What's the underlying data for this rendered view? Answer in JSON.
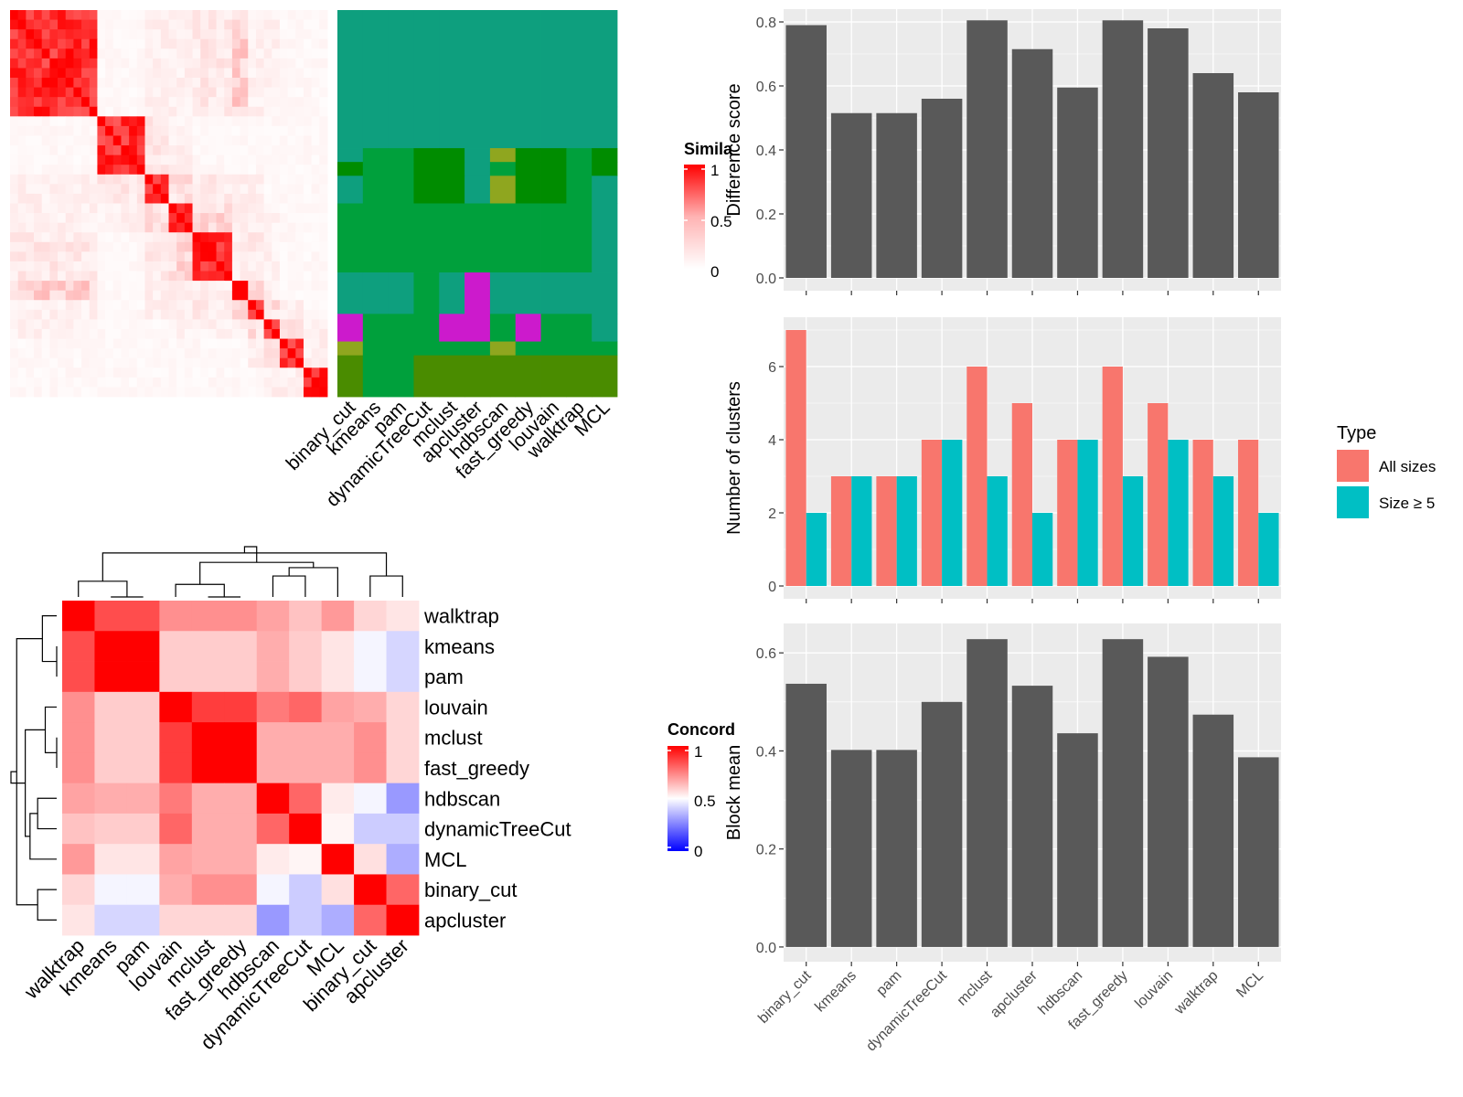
{
  "colors": {
    "heat_high": "#FF0000",
    "heat_mid": "#FFB3B3",
    "heat_low": "#FFFFFF",
    "conc_low": "#0000FF",
    "conc_mid": "#FFFFFF",
    "conc_high": "#FF0000",
    "panel_bg": "#EBEBEB",
    "gridline": "#FFFFFF",
    "bar_gray": "#595959",
    "all_sizes": "#F8766D",
    "size_ge5": "#00BFC4",
    "grey_text": "#4D4D4D"
  },
  "chart_data": [
    {
      "id": "cell-similarity-heatmap",
      "type": "heatmap",
      "legend_title": "Simila",
      "legend_ticks": [
        "1",
        "0.5",
        "0"
      ],
      "n_cells": 40,
      "groups": [
        {
          "size": 11,
          "label": 0
        },
        {
          "size": 6,
          "label": 0
        },
        {
          "size": 3,
          "label": 1
        },
        {
          "size": 3,
          "label": 2
        },
        {
          "size": 5,
          "label": 3
        },
        {
          "size": 2,
          "label": 4
        },
        {
          "size": 2,
          "label": 5
        },
        {
          "size": 2,
          "label": 6
        },
        {
          "size": 3,
          "label": 7
        },
        {
          "size": 3,
          "label": 8
        }
      ],
      "block_similarity": [
        [
          1.0,
          0.05,
          0.1,
          0.1,
          0.15,
          0.3,
          0.1,
          0.1,
          0.05,
          0.05
        ],
        [
          0.05,
          1.0,
          0.15,
          0.1,
          0.05,
          0.05,
          0.05,
          0.05,
          0.05,
          0.05
        ],
        [
          0.1,
          0.15,
          1.0,
          0.2,
          0.15,
          0.1,
          0.1,
          0.05,
          0.05,
          0.05
        ],
        [
          0.1,
          0.1,
          0.2,
          1.0,
          0.25,
          0.1,
          0.1,
          0.1,
          0.05,
          0.05
        ],
        [
          0.15,
          0.05,
          0.15,
          0.25,
          1.0,
          0.1,
          0.15,
          0.1,
          0.05,
          0.05
        ],
        [
          0.3,
          0.05,
          0.1,
          0.1,
          0.1,
          1.0,
          0.2,
          0.1,
          0.05,
          0.05
        ],
        [
          0.1,
          0.05,
          0.1,
          0.1,
          0.15,
          0.2,
          1.0,
          0.2,
          0.1,
          0.05
        ],
        [
          0.1,
          0.05,
          0.05,
          0.1,
          0.1,
          0.1,
          0.2,
          1.0,
          0.2,
          0.1
        ],
        [
          0.05,
          0.05,
          0.05,
          0.05,
          0.05,
          0.05,
          0.1,
          0.2,
          1.0,
          0.1
        ],
        [
          0.05,
          0.05,
          0.05,
          0.05,
          0.05,
          0.05,
          0.05,
          0.1,
          0.1,
          1.0
        ]
      ]
    },
    {
      "id": "method-cluster-assignments",
      "type": "heatmap",
      "methods": [
        "binary_cut",
        "kmeans",
        "pam",
        "dynamicTreeCut",
        "mclust",
        "apcluster",
        "hdbscan",
        "fast_greedy",
        "louvain",
        "walktrap",
        "MCL"
      ],
      "palette": [
        "#0E9F7E",
        "#00A03C",
        "#008C00",
        "#8FA61F",
        "#CC1ACC",
        "#4A8C00"
      ],
      "row_groups": [
        {
          "size": 7,
          "row": [
            0,
            0,
            0,
            0,
            0,
            0,
            0,
            0,
            0,
            0,
            0
          ]
        },
        {
          "size": 3,
          "row": [
            0,
            0,
            0,
            0,
            0,
            0,
            0,
            0,
            0,
            0,
            0
          ]
        },
        {
          "size": 1,
          "row": [
            0,
            1,
            1,
            2,
            2,
            0,
            3,
            2,
            2,
            1,
            2
          ]
        },
        {
          "size": 1,
          "row": [
            2,
            1,
            1,
            2,
            2,
            0,
            1,
            2,
            2,
            1,
            2
          ]
        },
        {
          "size": 2,
          "row": [
            0,
            1,
            1,
            2,
            2,
            0,
            3,
            2,
            2,
            1,
            0
          ]
        },
        {
          "size": 5,
          "row": [
            1,
            1,
            1,
            1,
            1,
            1,
            1,
            1,
            1,
            1,
            0
          ]
        },
        {
          "size": 3,
          "row": [
            0,
            0,
            0,
            1,
            0,
            4,
            0,
            0,
            0,
            0,
            0
          ]
        },
        {
          "size": 2,
          "row": [
            4,
            1,
            1,
            1,
            4,
            4,
            1,
            4,
            1,
            1,
            0
          ]
        },
        {
          "size": 1,
          "row": [
            3,
            1,
            1,
            1,
            1,
            1,
            3,
            1,
            1,
            1,
            1
          ]
        },
        {
          "size": 3,
          "row": [
            5,
            1,
            1,
            5,
            5,
            5,
            5,
            5,
            5,
            5,
            5
          ]
        }
      ]
    },
    {
      "id": "concordance-heatmap",
      "type": "heatmap",
      "legend_title": "Concord",
      "legend_ticks": [
        "1",
        "0.5",
        "0"
      ],
      "order": [
        "walktrap",
        "kmeans",
        "pam",
        "louvain",
        "mclust",
        "fast_greedy",
        "hdbscan",
        "dynamicTreeCut",
        "MCL",
        "binary_cut",
        "apcluster"
      ],
      "values": [
        [
          1.0,
          0.85,
          0.85,
          0.72,
          0.72,
          0.72,
          0.68,
          0.62,
          0.7,
          0.58,
          0.55
        ],
        [
          0.85,
          1.0,
          1.0,
          0.6,
          0.6,
          0.6,
          0.66,
          0.6,
          0.55,
          0.48,
          0.42
        ],
        [
          0.85,
          1.0,
          1.0,
          0.6,
          0.6,
          0.6,
          0.66,
          0.6,
          0.55,
          0.48,
          0.42
        ],
        [
          0.72,
          0.6,
          0.6,
          1.0,
          0.88,
          0.88,
          0.76,
          0.8,
          0.68,
          0.66,
          0.58
        ],
        [
          0.72,
          0.6,
          0.6,
          0.88,
          1.0,
          1.0,
          0.66,
          0.66,
          0.66,
          0.72,
          0.58
        ],
        [
          0.72,
          0.6,
          0.6,
          0.88,
          1.0,
          1.0,
          0.66,
          0.66,
          0.66,
          0.72,
          0.58
        ],
        [
          0.68,
          0.66,
          0.66,
          0.76,
          0.66,
          0.66,
          1.0,
          0.8,
          0.54,
          0.48,
          0.3
        ],
        [
          0.62,
          0.6,
          0.6,
          0.8,
          0.66,
          0.66,
          0.8,
          1.0,
          0.52,
          0.4,
          0.4
        ],
        [
          0.7,
          0.55,
          0.55,
          0.68,
          0.66,
          0.66,
          0.54,
          0.52,
          1.0,
          0.56,
          0.34
        ],
        [
          0.58,
          0.48,
          0.48,
          0.66,
          0.72,
          0.72,
          0.48,
          0.4,
          0.56,
          1.0,
          0.8
        ],
        [
          0.55,
          0.42,
          0.42,
          0.58,
          0.58,
          0.58,
          0.3,
          0.4,
          0.34,
          0.8,
          1.0
        ]
      ]
    },
    {
      "id": "difference-score",
      "type": "bar",
      "categories": [
        "binary_cut",
        "kmeans",
        "pam",
        "dynamicTreeCut",
        "mclust",
        "apcluster",
        "hdbscan",
        "fast_greedy",
        "louvain",
        "walktrap",
        "MCL"
      ],
      "values": [
        0.79,
        0.515,
        0.515,
        0.56,
        0.805,
        0.715,
        0.595,
        0.805,
        0.78,
        0.64,
        0.58
      ],
      "ylabel": "Difference score",
      "ylim": [
        -0.04,
        0.84
      ],
      "yticks": [
        0.0,
        0.2,
        0.4,
        0.6,
        0.8
      ],
      "ytick_labels": [
        "0.0",
        "0.2",
        "0.4",
        "0.6",
        "0.8"
      ]
    },
    {
      "id": "number-of-clusters",
      "type": "bar",
      "categories": [
        "binary_cut",
        "kmeans",
        "pam",
        "dynamicTreeCut",
        "mclust",
        "apcluster",
        "hdbscan",
        "fast_greedy",
        "louvain",
        "walktrap",
        "MCL"
      ],
      "series": [
        {
          "name": "All sizes",
          "values": [
            7,
            3,
            3,
            4,
            6,
            5,
            4,
            6,
            5,
            4,
            4
          ]
        },
        {
          "name": "Size ≥ 5",
          "values": [
            2,
            3,
            3,
            4,
            3,
            2,
            4,
            3,
            4,
            3,
            2
          ]
        }
      ],
      "ylabel": "Number of clusters",
      "ylim": [
        -0.35,
        7.35
      ],
      "yticks": [
        0,
        2,
        4,
        6
      ],
      "ytick_labels": [
        "0",
        "2",
        "4",
        "6"
      ],
      "legend": {
        "title": "Type",
        "placement": "right"
      }
    },
    {
      "id": "block-mean",
      "type": "bar",
      "categories": [
        "binary_cut",
        "kmeans",
        "pam",
        "dynamicTreeCut",
        "mclust",
        "apcluster",
        "hdbscan",
        "fast_greedy",
        "louvain",
        "walktrap",
        "MCL"
      ],
      "values": [
        0.537,
        0.402,
        0.402,
        0.5,
        0.628,
        0.533,
        0.436,
        0.628,
        0.592,
        0.474,
        0.387
      ],
      "ylabel": "Block mean",
      "ylim": [
        -0.03,
        0.66
      ],
      "yticks": [
        0.0,
        0.2,
        0.4,
        0.6
      ],
      "ytick_labels": [
        "0.0",
        "0.2",
        "0.4",
        "0.6"
      ]
    }
  ]
}
